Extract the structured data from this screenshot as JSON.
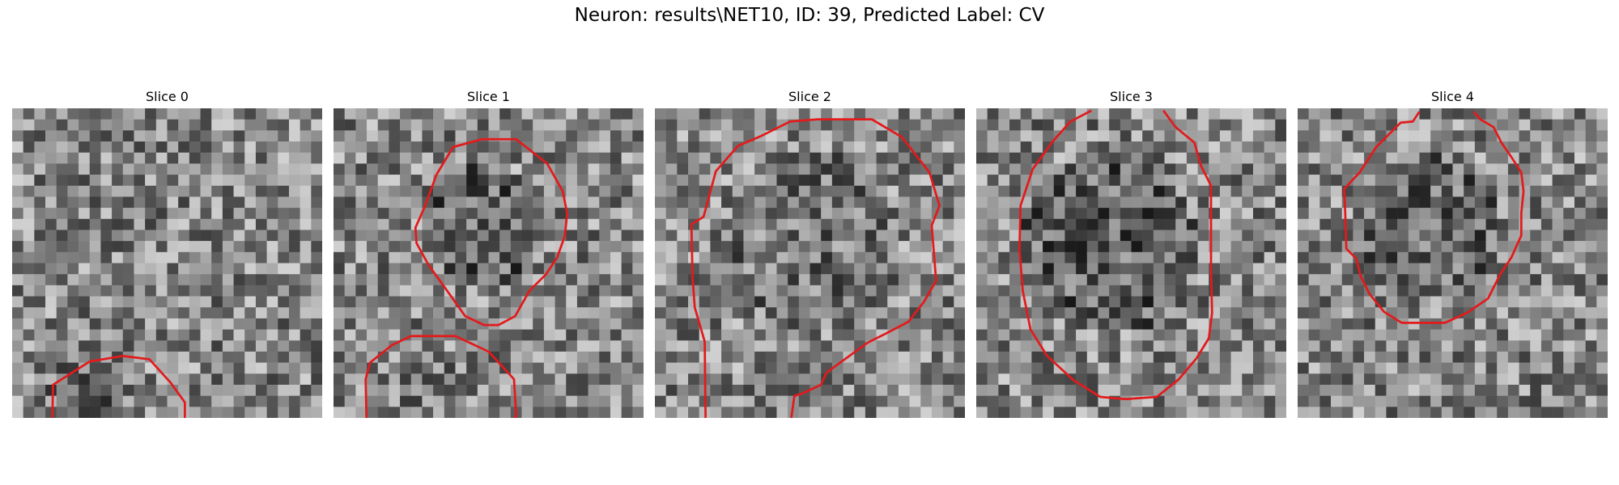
{
  "figure": {
    "title": "Neuron: results\\NET10, ID: 39, Predicted Label: CV"
  },
  "slices": [
    {
      "title": "Slice 0",
      "contour": [
        [
          3.6,
          29.2
        ],
        [
          3.7,
          25.0
        ],
        [
          7.0,
          22.9
        ],
        [
          10.0,
          22.4
        ],
        [
          12.4,
          22.7
        ],
        [
          14.3,
          24.8
        ],
        [
          15.6,
          26.6
        ],
        [
          15.6,
          29.5
        ],
        [
          14.5,
          30.6
        ],
        [
          13.2,
          30.8
        ],
        [
          12.6,
          31.4
        ],
        [
          10.8,
          31.6
        ],
        [
          9.8,
          32.7
        ],
        [
          8.0,
          32.8
        ],
        [
          8.9,
          33.4
        ],
        [
          6.3,
          33.5
        ],
        [
          5.5,
          32.8
        ],
        [
          4.4,
          32.7
        ],
        [
          4.4,
          31.2
        ],
        [
          3.6,
          30.4
        ]
      ]
    },
    {
      "title": "Slice 1",
      "contour": [
        [
          9.3,
          6.0
        ],
        [
          10.8,
          3.5
        ],
        [
          13.4,
          2.8
        ],
        [
          16.5,
          2.8
        ],
        [
          19.3,
          5.0
        ],
        [
          20.7,
          7.5
        ],
        [
          21.1,
          9.5
        ],
        [
          20.9,
          11.5
        ],
        [
          20.2,
          13.5
        ],
        [
          19.2,
          15.0
        ],
        [
          17.7,
          16.5
        ],
        [
          16.4,
          18.8
        ],
        [
          14.9,
          19.6
        ],
        [
          13.6,
          19.6
        ],
        [
          11.9,
          18.8
        ],
        [
          9.9,
          16.0
        ],
        [
          8.6,
          14.2
        ],
        [
          7.5,
          12.2
        ],
        [
          7.4,
          10.8
        ],
        [
          8.2,
          9.0
        ]
      ],
      "contour2": [
        [
          3.3,
          23.0
        ],
        [
          5.3,
          21.4
        ],
        [
          7.0,
          20.6
        ],
        [
          11.0,
          20.6
        ],
        [
          14.0,
          22.0
        ],
        [
          16.3,
          24.5
        ],
        [
          16.5,
          27.8
        ],
        [
          15.2,
          29.5
        ],
        [
          14.0,
          30.5
        ],
        [
          11.5,
          30.8
        ],
        [
          10.7,
          31.6
        ],
        [
          6.0,
          31.7
        ],
        [
          4.6,
          30.6
        ],
        [
          3.0,
          29.2
        ],
        [
          2.9,
          24.5
        ]
      ]
    },
    {
      "title": "Slice 2",
      "contour": [
        [
          5.5,
          5.7
        ],
        [
          7.5,
          3.4
        ],
        [
          9.6,
          2.5
        ],
        [
          12.2,
          1.2
        ],
        [
          14.6,
          1.0
        ],
        [
          19.6,
          1.0
        ],
        [
          22.3,
          2.6
        ],
        [
          24.8,
          5.8
        ],
        [
          25.7,
          8.8
        ],
        [
          25.0,
          10.6
        ],
        [
          25.4,
          15.6
        ],
        [
          24.3,
          17.5
        ],
        [
          22.9,
          19.3
        ],
        [
          20.8,
          20.4
        ],
        [
          19.2,
          21.2
        ],
        [
          15.5,
          23.9
        ],
        [
          15.0,
          25.0
        ],
        [
          13.3,
          25.8
        ],
        [
          12.6,
          26.0
        ],
        [
          12.1,
          29.6
        ],
        [
          10.6,
          31.1
        ],
        [
          6.0,
          31.1
        ],
        [
          4.6,
          30.0
        ],
        [
          4.5,
          21.1
        ],
        [
          3.6,
          18.0
        ],
        [
          3.4,
          15.3
        ],
        [
          3.3,
          10.5
        ],
        [
          4.4,
          9.8
        ]
      ]
    },
    {
      "title": "Slice 3",
      "contour": [
        [
          10.4,
          0.2
        ],
        [
          8.5,
          1.2
        ],
        [
          6.9,
          3.0
        ],
        [
          5.1,
          5.5
        ],
        [
          4.0,
          8.8
        ],
        [
          3.9,
          12.7
        ],
        [
          4.2,
          16.5
        ],
        [
          4.9,
          20.0
        ],
        [
          6.4,
          22.4
        ],
        [
          8.8,
          24.6
        ],
        [
          11.2,
          26.1
        ],
        [
          13.5,
          26.3
        ],
        [
          16.3,
          26.1
        ],
        [
          18.3,
          24.5
        ],
        [
          19.9,
          22.6
        ],
        [
          21.0,
          20.8
        ],
        [
          21.3,
          18.5
        ],
        [
          21.2,
          14.7
        ],
        [
          21.2,
          7.0
        ],
        [
          20.3,
          5.2
        ],
        [
          19.7,
          3.1
        ],
        [
          18.0,
          1.7
        ],
        [
          16.9,
          0.2
        ]
      ]
    },
    {
      "title": "Slice 4",
      "contour": [
        [
          11.0,
          0.3
        ],
        [
          10.4,
          1.2
        ],
        [
          9.3,
          1.3
        ],
        [
          7.1,
          3.5
        ],
        [
          5.6,
          5.8
        ],
        [
          4.2,
          7.3
        ],
        [
          4.3,
          9.5
        ],
        [
          4.4,
          12.7
        ],
        [
          5.3,
          13.6
        ],
        [
          5.7,
          15.2
        ],
        [
          6.5,
          16.8
        ],
        [
          7.8,
          18.4
        ],
        [
          9.4,
          19.4
        ],
        [
          13.3,
          19.4
        ],
        [
          15.3,
          18.5
        ],
        [
          17.2,
          17.2
        ],
        [
          18.3,
          15.0
        ],
        [
          19.3,
          13.5
        ],
        [
          20.2,
          11.5
        ],
        [
          20.2,
          9.5
        ],
        [
          20.4,
          7.5
        ],
        [
          20.2,
          5.8
        ],
        [
          19.3,
          4.4
        ],
        [
          18.4,
          3.1
        ],
        [
          17.7,
          1.7
        ],
        [
          16.5,
          1.0
        ],
        [
          15.9,
          0.3
        ]
      ]
    }
  ],
  "colors": {
    "contour": "#e31a1c",
    "background": "#ffffff"
  }
}
